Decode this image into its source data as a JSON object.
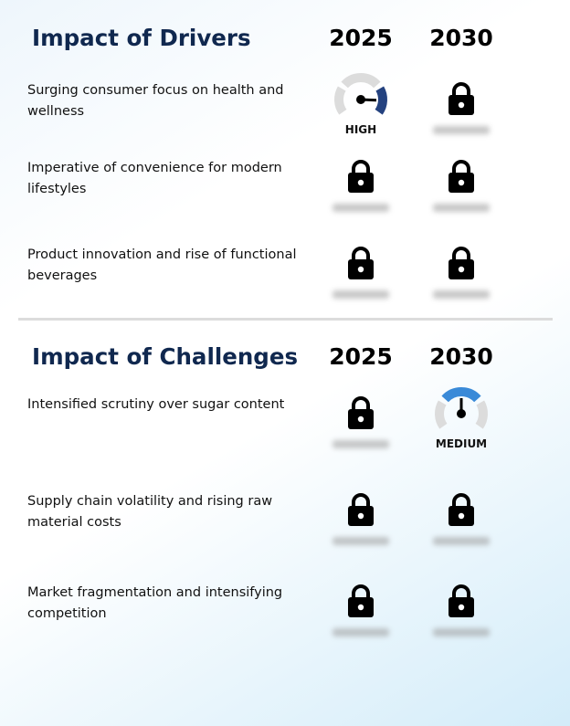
{
  "sections": [
    {
      "title": "Impact of Drivers",
      "years": [
        "2025",
        "2030"
      ],
      "rows": [
        {
          "label": "Surging consumer focus on health and wellness",
          "cells": [
            {
              "status": "gauge",
              "level": "HIGH",
              "active_segment": 2,
              "color": "#24427f"
            },
            {
              "status": "locked"
            }
          ]
        },
        {
          "label": "Imperative of convenience for modern lifestyles",
          "cells": [
            {
              "status": "locked"
            },
            {
              "status": "locked"
            }
          ]
        },
        {
          "label": "Product innovation and rise of functional beverages",
          "cells": [
            {
              "status": "locked"
            },
            {
              "status": "locked"
            }
          ]
        }
      ]
    },
    {
      "title": "Impact of Challenges",
      "years": [
        "2025",
        "2030"
      ],
      "rows": [
        {
          "label": "Intensified scrutiny over sugar content",
          "cells": [
            {
              "status": "locked"
            },
            {
              "status": "gauge",
              "level": "MEDIUM",
              "active_segment": 1,
              "color": "#3a8ad8"
            }
          ]
        },
        {
          "label": "Supply chain volatility and rising raw material costs",
          "cells": [
            {
              "status": "locked"
            },
            {
              "status": "locked"
            }
          ]
        },
        {
          "label": "Market fragmentation and intensifying competition",
          "cells": [
            {
              "status": "locked"
            },
            {
              "status": "locked"
            }
          ]
        }
      ]
    }
  ]
}
